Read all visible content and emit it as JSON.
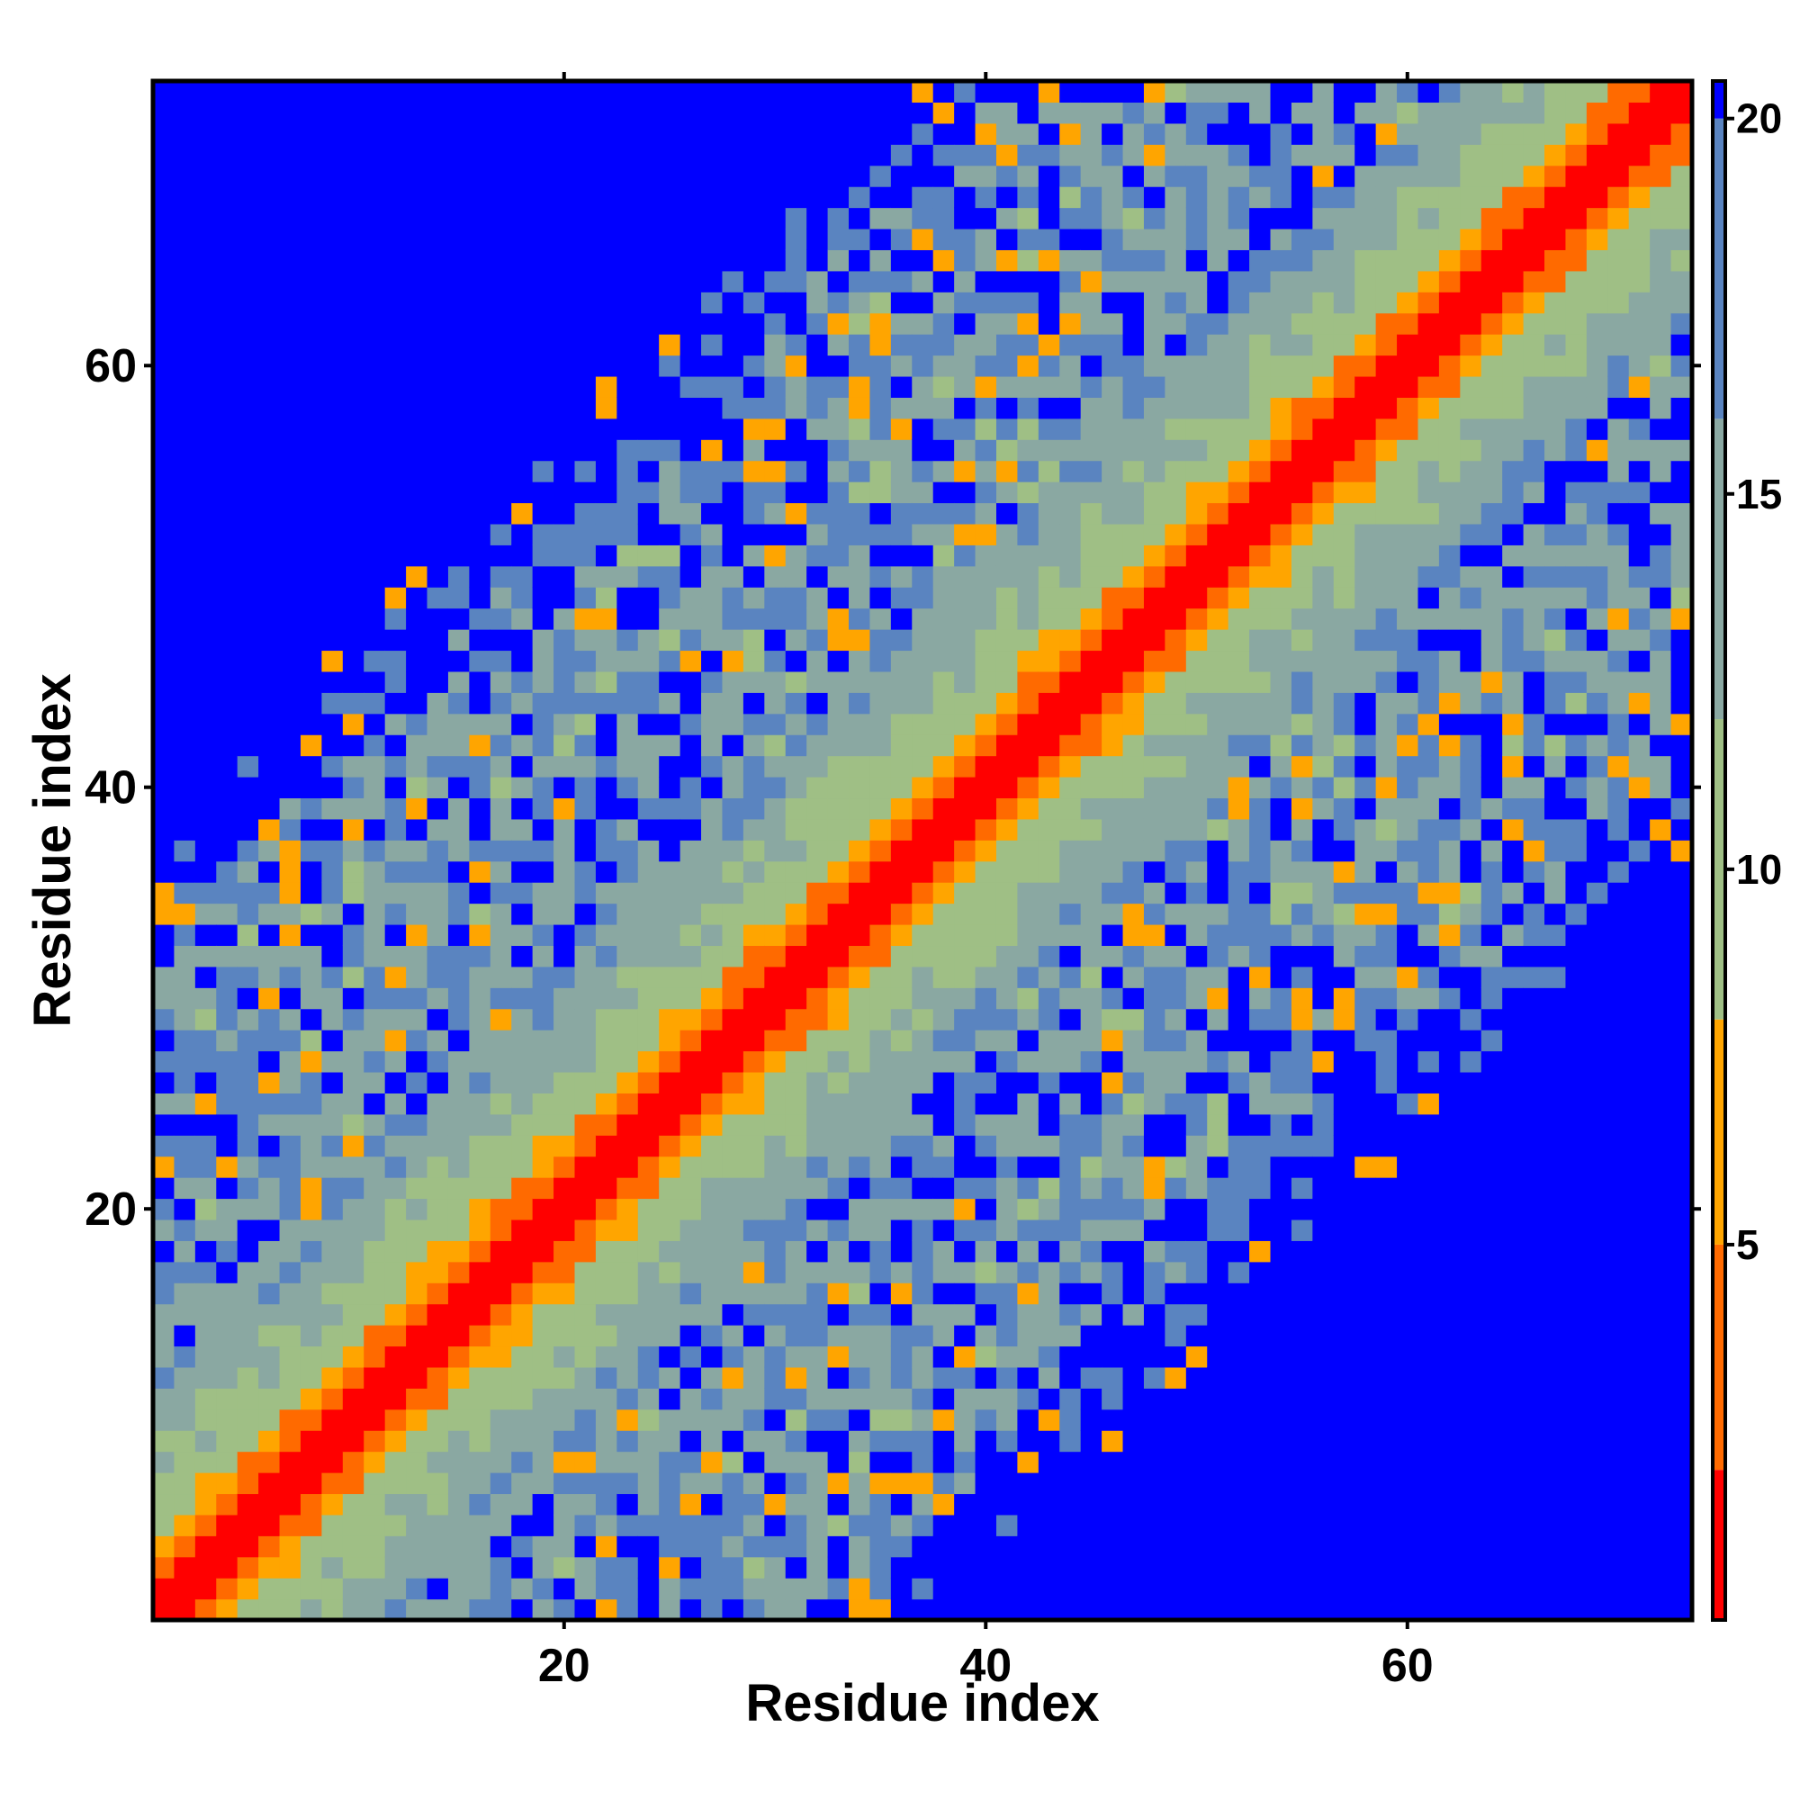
{
  "chart_data": {
    "type": "heatmap",
    "title": "",
    "xlabel": "Residue index",
    "ylabel": "Residue index",
    "n_residues": 73,
    "x_ticks": [
      20,
      40,
      60
    ],
    "y_ticks": [
      20,
      40,
      60
    ],
    "xlim": [
      0.5,
      73.5
    ],
    "ylim": [
      0.5,
      73.5
    ],
    "colorbar": {
      "ticks": [
        5,
        10,
        15,
        20
      ],
      "range": [
        0,
        20.5
      ],
      "bands": [
        {
          "from": 0,
          "to": 2,
          "color": "#ff0000"
        },
        {
          "from": 2,
          "to": 5,
          "color": "#ff6a00"
        },
        {
          "from": 5,
          "to": 8,
          "color": "#ffa500"
        },
        {
          "from": 8,
          "to": 12,
          "color": "#9fbf85"
        },
        {
          "from": 12,
          "to": 16,
          "color": "#8aa8a2"
        },
        {
          "from": 16,
          "to": 20,
          "color": "#5a84c0"
        },
        {
          "from": 20,
          "to": 20.5,
          "color": "#0000ff"
        }
      ]
    },
    "distance_model": {
      "description": "symmetric pairwise residue distance map; values grow with |i-j|, saturating at the blue cutoff",
      "diagonal_value": 0,
      "band_values_by_separation": [
        0,
        1,
        3.5,
        6,
        9,
        10,
        11,
        12,
        13,
        14,
        15,
        16
      ],
      "far_value": 21,
      "blue_corner_threshold": 26
    }
  }
}
